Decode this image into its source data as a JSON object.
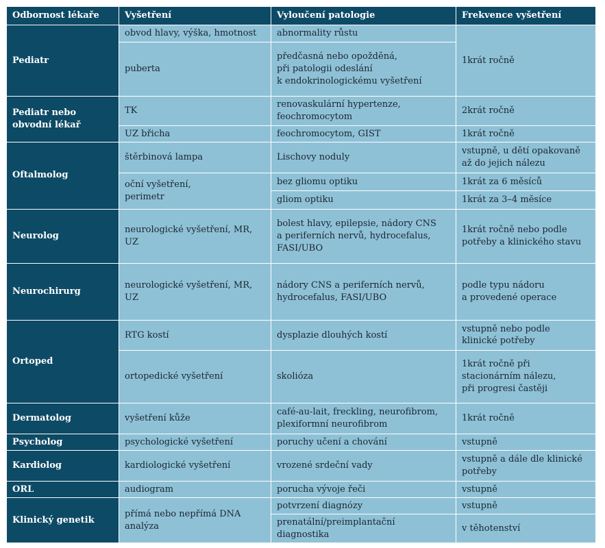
{
  "headers": [
    "Odbornost lékaře",
    "Vyšetření",
    "Vyloučení patologie",
    "Frekvence vyšetření"
  ],
  "specialties": [
    [
      "Pediatr"
    ],
    [
      "Pediatr nebo",
      "obvodní lékař"
    ],
    [
      "Oftalmolog"
    ],
    [
      "Neurolog"
    ],
    [
      "Neurochirurg"
    ],
    [
      "Ortoped"
    ],
    [
      "Dermatolog"
    ],
    [
      "Psycholog"
    ],
    [
      "Kardiolog"
    ],
    [
      "ORL"
    ],
    [
      "Klinický genetik"
    ]
  ],
  "exams": [
    [
      "obvod hlavy, výška, hmotnost"
    ],
    [
      "puberta"
    ],
    [
      "TK"
    ],
    [
      "UZ břicha"
    ],
    [
      "štěrbinová lampa"
    ],
    [
      "oční vyšetření,",
      "perimetr"
    ],
    [
      "neurologické vyšetření, MR,",
      "UZ"
    ],
    [
      "neurologické vyšetření, MR,",
      "UZ"
    ],
    [
      "RTG kostí"
    ],
    [
      "ortopedické vyšetření"
    ],
    [
      "vyšetření kůže"
    ],
    [
      "psychologické vyšetření"
    ],
    [
      "kardiologické vyšetření"
    ],
    [
      "audiogram"
    ],
    [
      "přímá nebo nepřímá DNA",
      "analýza"
    ]
  ],
  "pathologies": [
    [
      "abnormality růstu"
    ],
    [
      "předčasná nebo opožděná,",
      "při patologii odeslání",
      "k endokrinologickému vyšetření"
    ],
    [
      "renovaskulární hypertenze,",
      "feochromocytom"
    ],
    [
      "feochromocytom, GIST"
    ],
    [
      "Lischovy noduly"
    ],
    [
      "bez gliomu optiku"
    ],
    [
      "gliom optiku"
    ],
    [
      "bolest hlavy, epilepsie, nádory CNS",
      "a periferních nervů, hydrocefalus,",
      "FASI/UBO"
    ],
    [
      "nádory CNS a periferních nervů,",
      "hydrocefalus, FASI/UBO"
    ],
    [
      "dysplazie dlouhých kostí"
    ],
    [
      "skolióza"
    ],
    [
      "café-au-lait, freckling, neurofibrom,",
      "plexiformní neurofibrom"
    ],
    [
      "poruchy učení a chování"
    ],
    [
      "vrozené srdeční vady"
    ],
    [
      "porucha vývoje řeči"
    ],
    [
      "potvrzení diagnózy"
    ],
    [
      "prenatální/preimplantační",
      "diagnostika"
    ]
  ],
  "frequencies": [
    [
      "1krát ročně"
    ],
    [
      "2krát ročně"
    ],
    [
      "1krát ročně"
    ],
    [
      "vstupně, u dětí opakovaně",
      "až do jejich nálezu"
    ],
    [
      "1krát za 6 měsíců"
    ],
    [
      "1krát za 3–4 měsíce"
    ],
    [
      "1krát ročně nebo podle",
      "potřeby a klinického stavu"
    ],
    [
      "podle typu nádoru",
      "a provedené operace"
    ],
    [
      "vstupně nebo podle",
      "klinické potřeby"
    ],
    [
      "1krát ročně při",
      "stacionárním nálezu,",
      "při progresi častěji"
    ],
    [
      "1krát ročně"
    ],
    [
      "vstupně"
    ],
    [
      "vstupně a dále dle klinické",
      "potřeby"
    ],
    [
      "vstupně"
    ],
    [
      "vstupně"
    ],
    [
      "v těhotenství"
    ]
  ]
}
